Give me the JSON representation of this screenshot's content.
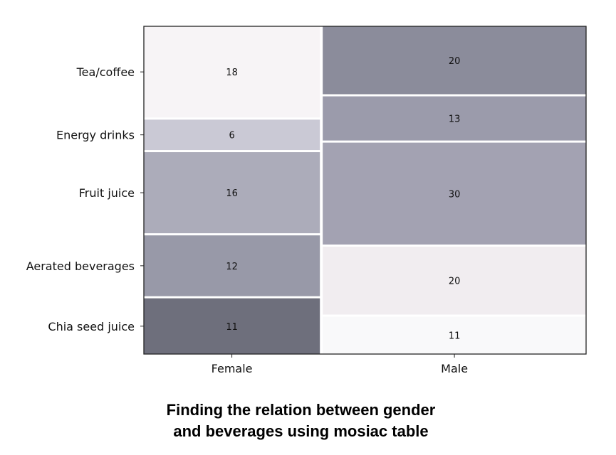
{
  "chart_data": {
    "type": "mosaic",
    "categories": [
      "Female",
      "Male"
    ],
    "rows": [
      "Chia seed juice",
      "Aerated beverages",
      "Fruit juice",
      "Energy drinks",
      "Tea/coffee"
    ],
    "counts": {
      "Female": [
        11,
        12,
        16,
        6,
        18
      ],
      "Male": [
        11,
        20,
        30,
        13,
        20
      ]
    },
    "colors": {
      "Female": [
        "#6e6f7c",
        "#9899a8",
        "#acacba",
        "#cac9d5",
        "#f7f4f6"
      ],
      "Male": [
        "#f9f9fa",
        "#f1edf0",
        "#a3a2b2",
        "#9b9bab",
        "#8b8c9b"
      ]
    },
    "xlabel": "",
    "ylabel": "",
    "title": ""
  },
  "caption": {
    "line1": "Finding the relation between gender",
    "line2": "and beverages using mosiac table"
  }
}
